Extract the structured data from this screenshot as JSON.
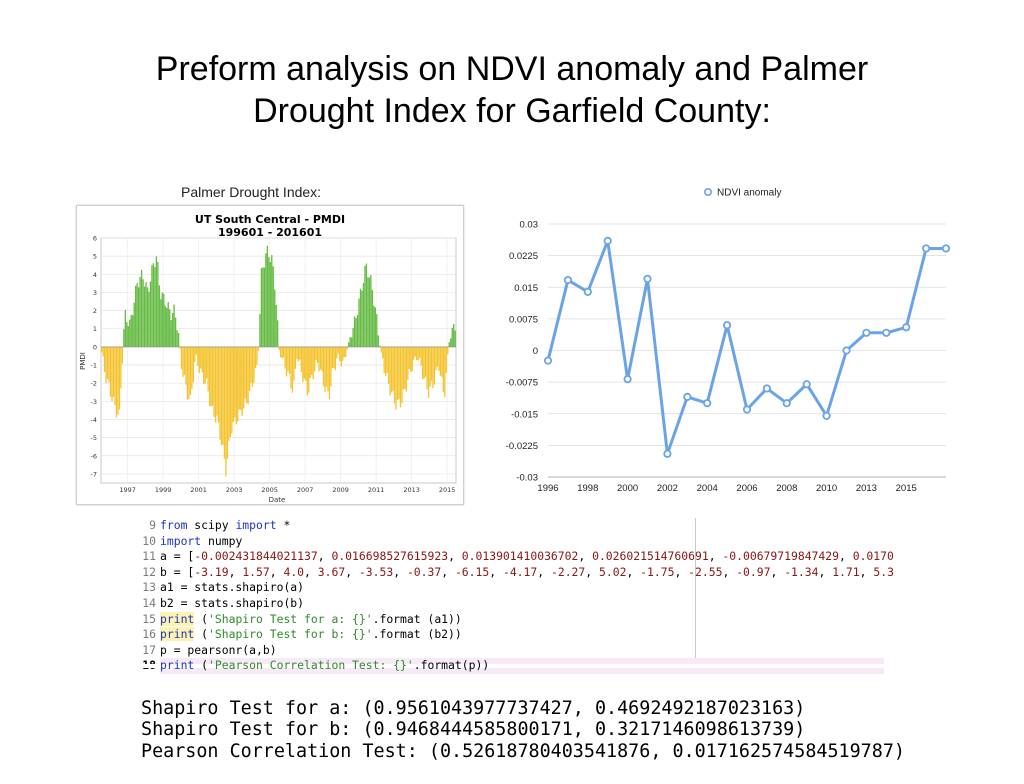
{
  "slide": {
    "title_line1": "Preform analysis on NDVI anomaly and Palmer",
    "title_line2": "Drought Index for Garfield County:"
  },
  "pdi_caption": "Palmer Drought Index:",
  "chart_data": [
    {
      "type": "bar",
      "title": "UT South Central - PMDI",
      "subtitle": "199601 - 201601",
      "xlabel": "Date",
      "ylabel": "PMDI",
      "xlim": [
        1996,
        2016
      ],
      "ylim": [
        -7.5,
        6
      ],
      "x_ticks": [
        "1997",
        "1999",
        "2001",
        "2003",
        "2005",
        "2007",
        "2009",
        "2011",
        "2013",
        "2015"
      ],
      "y_ticks": [
        "6",
        "5",
        "4",
        "3",
        "2",
        "1",
        "0",
        "-1",
        "-2",
        "-3",
        "-4",
        "-5",
        "-6",
        "-7"
      ],
      "colors": {
        "positive": "#66bb44",
        "negative": "#f4c430"
      },
      "grid": true,
      "series_keypoints": [
        [
          1996.0,
          -0.3
        ],
        [
          1996.2,
          -1.5
        ],
        [
          1996.5,
          -2.5
        ],
        [
          1996.8,
          -3.5
        ],
        [
          1997.0,
          -3.8
        ],
        [
          1997.3,
          1.8
        ],
        [
          1997.6,
          1.2
        ],
        [
          1998.0,
          3.5
        ],
        [
          1998.3,
          4.0
        ],
        [
          1998.6,
          3.0
        ],
        [
          1998.9,
          4.5
        ],
        [
          1999.1,
          5.0
        ],
        [
          1999.3,
          3.0
        ],
        [
          1999.6,
          2.5
        ],
        [
          1999.9,
          1.8
        ],
        [
          2000.1,
          2.0
        ],
        [
          2000.3,
          1.0
        ],
        [
          2000.5,
          -1.0
        ],
        [
          2000.8,
          -2.5
        ],
        [
          2001.0,
          -3.0
        ],
        [
          2001.3,
          -0.5
        ],
        [
          2001.6,
          -1.5
        ],
        [
          2001.9,
          -2.0
        ],
        [
          2002.2,
          -3.5
        ],
        [
          2002.5,
          -4.0
        ],
        [
          2002.8,
          -5.5
        ],
        [
          2003.0,
          -6.8
        ],
        [
          2003.3,
          -4.5
        ],
        [
          2003.6,
          -4.0
        ],
        [
          2003.9,
          -3.5
        ],
        [
          2004.2,
          -3.0
        ],
        [
          2004.5,
          -2.0
        ],
        [
          2004.8,
          -1.0
        ],
        [
          2005.0,
          4.0
        ],
        [
          2005.3,
          5.3
        ],
        [
          2005.6,
          4.8
        ],
        [
          2005.8,
          3.0
        ],
        [
          2006.0,
          -0.2
        ],
        [
          2006.3,
          -1.0
        ],
        [
          2006.6,
          -1.8
        ],
        [
          2006.8,
          -2.5
        ],
        [
          2007.0,
          -0.5
        ],
        [
          2007.3,
          -1.5
        ],
        [
          2007.6,
          -2.5
        ],
        [
          2007.9,
          -1.5
        ],
        [
          2008.2,
          -0.8
        ],
        [
          2008.5,
          -2.0
        ],
        [
          2008.8,
          -2.8
        ],
        [
          2009.0,
          -1.5
        ],
        [
          2009.3,
          -0.5
        ],
        [
          2009.6,
          -1.0
        ],
        [
          2010.0,
          0.5
        ],
        [
          2010.3,
          1.5
        ],
        [
          2010.6,
          3.0
        ],
        [
          2010.9,
          4.5
        ],
        [
          2011.2,
          3.5
        ],
        [
          2011.5,
          1.5
        ],
        [
          2011.7,
          -0.2
        ],
        [
          2012.0,
          -1.5
        ],
        [
          2012.3,
          -2.5
        ],
        [
          2012.6,
          -3.2
        ],
        [
          2012.9,
          -3.0
        ],
        [
          2013.2,
          -2.0
        ],
        [
          2013.5,
          -1.0
        ],
        [
          2013.8,
          -0.5
        ],
        [
          2014.1,
          -1.5
        ],
        [
          2014.4,
          -2.5
        ],
        [
          2014.7,
          -2.0
        ],
        [
          2015.0,
          -1.0
        ],
        [
          2015.3,
          -2.8
        ],
        [
          2015.6,
          0.5
        ],
        [
          2015.9,
          1.2
        ]
      ]
    },
    {
      "type": "line",
      "legend": "NDVI anomaly",
      "legend_position": "top",
      "color": "#6aa3e8",
      "x": [
        1996,
        1997,
        1998,
        1999,
        2000,
        2001,
        2002,
        2003,
        2004,
        2005,
        2006,
        2007,
        2008,
        2009,
        2010,
        2011,
        2012,
        2013,
        2014,
        2015,
        2016
      ],
      "values": [
        -0.0024,
        0.0167,
        0.0139,
        0.026,
        -0.0068,
        0.017,
        -0.0245,
        -0.011,
        -0.0125,
        0.006,
        -0.014,
        -0.009,
        -0.0125,
        -0.008,
        -0.0155,
        0.0,
        0.0042,
        0.0042,
        0.0055,
        0.0242,
        0.0242
      ],
      "x_tick_labels": [
        "1996",
        "1998",
        "2000",
        "2002",
        "2004",
        "2006",
        "2008",
        "2010",
        "2013",
        "2015"
      ],
      "y_tick_labels": [
        "0.03",
        "0.0225",
        "0.015",
        "0.0075",
        "0",
        "-0.0075",
        "-0.015",
        "-0.0225",
        "-0.03"
      ],
      "ylim": [
        -0.03,
        0.03
      ],
      "grid": true
    }
  ],
  "code": {
    "lines": [
      {
        "n": "9",
        "html": "<span class='kw'>from</span> scipy <span class='kw'>import</span> *"
      },
      {
        "n": "10",
        "html": "<span class='kw'>import</span> numpy"
      },
      {
        "n": "11",
        "html": "a = [<span class='num'>-0.002431844021137</span>, <span class='num'>0.016698527615923</span>, <span class='num'>0.013901410036702</span>, <span class='num'>0.026021514760691</span>, <span class='num'>-0.00679719847429</span>, <span class='num'>0.0170</span>"
      },
      {
        "n": "12",
        "html": "b = [<span class='num'>-3.19</span>, <span class='num'>1.57</span>, <span class='num'>4.0</span>, <span class='num'>3.67</span>, <span class='num'>-3.53</span>, <span class='num'>-0.37</span>, <span class='num'>-6.15</span>, <span class='num'>-4.17</span>, <span class='num'>-2.27</span>, <span class='num'>5.02</span>, <span class='num'>-1.75</span>, <span class='num'>-2.55</span>, <span class='num'>-0.97</span>, <span class='num'>-1.34</span>, <span class='num'>1.71</span>, <span class='num'>5.3</span>"
      },
      {
        "n": "13",
        "html": "a1 = stats.shapiro(a)"
      },
      {
        "n": "14",
        "html": "b2 = stats.shapiro(b)"
      },
      {
        "n": "15",
        "html": "<span class='kwp'>print</span> (<span class='str'>'Shapiro Test for a: {}'</span>.format (a1))"
      },
      {
        "n": "16",
        "html": "<span class='kwp'>print</span> (<span class='str'>'Shapiro Test for b: {}'</span>.format (b2))"
      },
      {
        "n": "17",
        "html": "p = pearsonr(a,b)"
      },
      {
        "n": "18",
        "html": "<span class='kw'>print</span> (<span class='str'>'Pearson Correlation Test: {}'</span>.format(p))",
        "current": true
      }
    ]
  },
  "output": {
    "line1": "Shapiro Test for a: (0.9561043977737427, 0.4692492187023163)",
    "line2": "Shapiro Test for b: (0.9468444585800171, 0.3217146098613739)",
    "line3": "Pearson Correlation Test: (0.5261878040354187​6, 0.017162574584519787)"
  }
}
